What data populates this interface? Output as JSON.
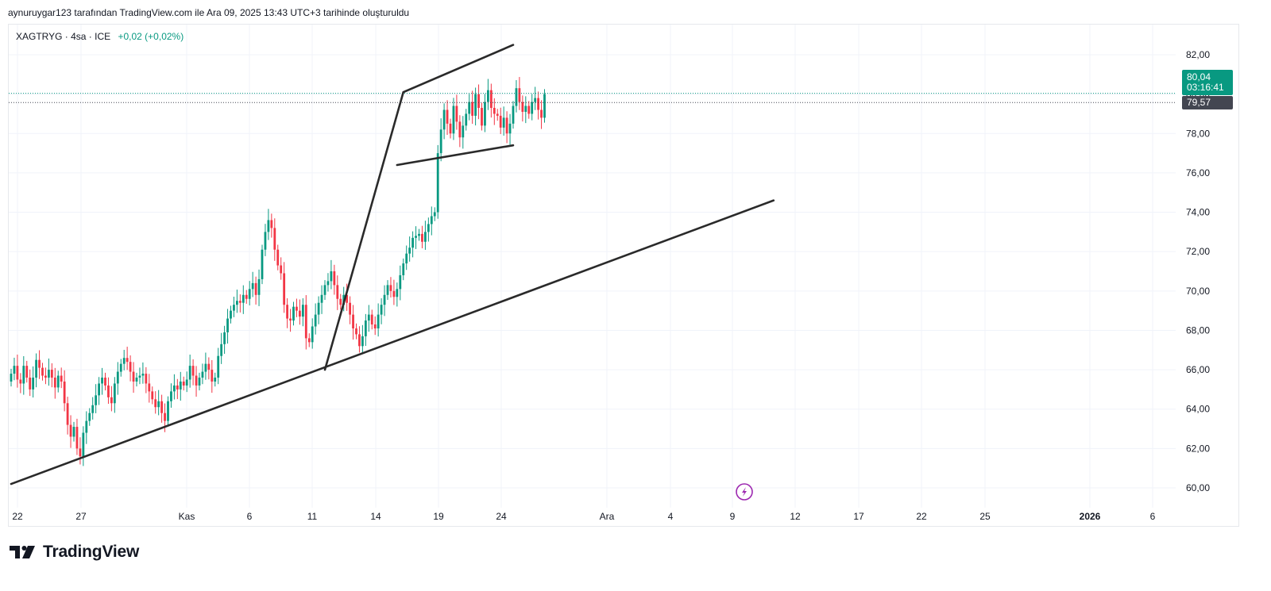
{
  "header": {
    "credit": "aynuruygar123 tarafından TradingView.com ile Ara 09, 2025 13:43 UTC+3 tarihinde oluşturuldu"
  },
  "legend": {
    "symbol": "XAGTRYG · 4sa · ICE",
    "change": "+0,02 (+0,02%)"
  },
  "price_badges": {
    "last_price": "80,04",
    "countdown": "03:16:41",
    "prev_price": "79,57"
  },
  "footer": {
    "brand": "TradingView"
  },
  "colors": {
    "up": "#089981",
    "down": "#f23645",
    "trendline": "#2a2a2a",
    "grid": "#f0f3fa",
    "event": "#9c27b0"
  },
  "icons": {
    "event_marker": "lightning-bolt-icon",
    "logo": "tradingview-logo-icon"
  },
  "chart_data": {
    "type": "candlestick",
    "title": "XAGTRYG · 4sa · ICE",
    "y_ticks": [
      "82,00",
      "80,00",
      "78,00",
      "76,00",
      "74,00",
      "72,00",
      "70,00",
      "68,00",
      "66,00",
      "64,00",
      "62,00",
      "60,00"
    ],
    "y_tick_values": [
      82,
      80,
      78,
      76,
      74,
      72,
      70,
      68,
      66,
      64,
      62,
      60
    ],
    "ylim": [
      59.4,
      83.5
    ],
    "x_ticks": [
      {
        "label": "22",
        "bold": false
      },
      {
        "label": "27",
        "bold": false
      },
      {
        "label": "Kas",
        "bold": false
      },
      {
        "label": "6",
        "bold": false
      },
      {
        "label": "11",
        "bold": false
      },
      {
        "label": "14",
        "bold": false
      },
      {
        "label": "19",
        "bold": false
      },
      {
        "label": "24",
        "bold": false
      },
      {
        "label": "Ara",
        "bold": false
      },
      {
        "label": "4",
        "bold": false
      },
      {
        "label": "9",
        "bold": false
      },
      {
        "label": "12",
        "bold": false
      },
      {
        "label": "17",
        "bold": false
      },
      {
        "label": "22",
        "bold": false
      },
      {
        "label": "25",
        "bold": false
      },
      {
        "label": "2026",
        "bold": true
      },
      {
        "label": "6",
        "bold": false
      }
    ],
    "grid": true,
    "last_price": 80.04,
    "prev_price": 79.57,
    "trendlines": [
      {
        "from": [
          0,
          60.2
        ],
        "to": [
          243,
          74.6
        ]
      },
      {
        "from": [
          100,
          66.0
        ],
        "to": [
          125,
          80.1
        ]
      },
      {
        "from": [
          125,
          80.1
        ],
        "to": [
          160,
          82.5
        ]
      },
      {
        "from": [
          123,
          76.4
        ],
        "to": [
          160,
          77.4
        ]
      }
    ],
    "closes": [
      65.8,
      66.2,
      65.5,
      65.3,
      66.2,
      65.6,
      65.0,
      65.6,
      66.5,
      66.1,
      65.7,
      65.6,
      66.0,
      65.6,
      65.1,
      65.7,
      65.4,
      64.3,
      63.2,
      62.6,
      63.1,
      62.0,
      61.6,
      62.8,
      63.4,
      63.8,
      64.2,
      64.7,
      65.3,
      65.6,
      65.2,
      64.6,
      64.3,
      65.3,
      65.9,
      66.3,
      66.6,
      66.4,
      65.9,
      65.4,
      65.6,
      65.7,
      65.8,
      65.3,
      64.9,
      64.5,
      64.1,
      64.4,
      63.8,
      63.4,
      64.4,
      64.9,
      65.2,
      65.0,
      65.4,
      65.2,
      65.5,
      66.2,
      65.7,
      65.2,
      65.6,
      65.9,
      66.3,
      66.0,
      65.4,
      65.6,
      66.7,
      67.3,
      67.9,
      68.6,
      69.0,
      69.3,
      69.5,
      69.4,
      69.8,
      69.6,
      70.1,
      70.4,
      69.8,
      70.6,
      72.1,
      73.0,
      73.6,
      73.2,
      72.1,
      71.3,
      70.9,
      69.3,
      68.6,
      68.5,
      69.2,
      69.0,
      68.7,
      69.3,
      67.6,
      67.4,
      68.2,
      68.8,
      69.4,
      69.8,
      70.3,
      70.5,
      71.0,
      70.3,
      69.6,
      69.3,
      69.8,
      69.4,
      68.8,
      68.1,
      67.8,
      67.2,
      67.7,
      68.5,
      68.8,
      68.3,
      68.1,
      68.8,
      69.3,
      69.8,
      70.3,
      70.0,
      69.7,
      70.1,
      70.8,
      71.4,
      71.9,
      72.2,
      72.7,
      72.8,
      72.9,
      72.5,
      73.0,
      73.4,
      73.8,
      74.0,
      77.0,
      78.2,
      79.2,
      78.5,
      78.0,
      79.4,
      78.6,
      77.8,
      78.4,
      79.0,
      79.6,
      78.9,
      80.0,
      79.3,
      78.4,
      79.6,
      80.2,
      79.3,
      79.0,
      78.9,
      78.3,
      78.8,
      78.0,
      78.5,
      79.4,
      80.3,
      79.6,
      79.1,
      79.4,
      79.0,
      79.6,
      79.8,
      79.2,
      78.8,
      80.0
    ]
  }
}
